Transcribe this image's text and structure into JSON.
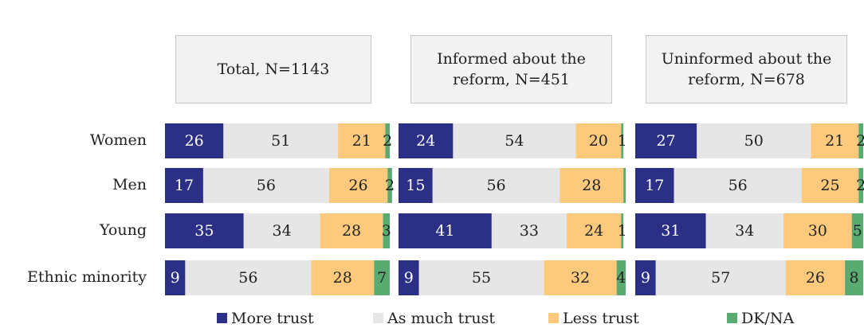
{
  "chart_data": [
    {
      "type": "stacked-bar",
      "title": "Total, N=1143",
      "categories": [
        "Women",
        "Men",
        "Young",
        "Ethnic minority"
      ],
      "xlim": [
        0,
        100
      ],
      "series": [
        {
          "name": "More trust",
          "color": "#2b2f85",
          "values": [
            26,
            17,
            35,
            9
          ]
        },
        {
          "name": "As much trust",
          "color": "#e6e6e6",
          "values": [
            51,
            56,
            34,
            56
          ]
        },
        {
          "name": "Less trust",
          "color": "#fdca7d",
          "values": [
            21,
            26,
            28,
            28
          ]
        },
        {
          "name": "DK/NA",
          "color": "#5aab72",
          "values": [
            2,
            2,
            3,
            7
          ]
        }
      ]
    },
    {
      "type": "stacked-bar",
      "title": "Informed about the reform, N=451",
      "categories": [
        "Women",
        "Men",
        "Young",
        "Ethnic minority"
      ],
      "xlim": [
        0,
        100
      ],
      "series": [
        {
          "name": "More trust",
          "color": "#2b2f85",
          "values": [
            24,
            15,
            41,
            9
          ]
        },
        {
          "name": "As much trust",
          "color": "#e6e6e6",
          "values": [
            54,
            56,
            33,
            55
          ]
        },
        {
          "name": "Less trust",
          "color": "#fdca7d",
          "values": [
            20,
            28,
            24,
            32
          ]
        },
        {
          "name": "DK/NA",
          "color": "#5aab72",
          "values": [
            1,
            1,
            1,
            4
          ],
          "value_labels": [
            "1",
            null,
            "1",
            "4"
          ]
        }
      ]
    },
    {
      "type": "stacked-bar",
      "title": "Uninformed about the reform, N=678",
      "categories": [
        "Women",
        "Men",
        "Young",
        "Ethnic minority"
      ],
      "xlim": [
        0,
        100
      ],
      "series": [
        {
          "name": "More trust",
          "color": "#2b2f85",
          "values": [
            27,
            17,
            31,
            9
          ]
        },
        {
          "name": "As much trust",
          "color": "#e6e6e6",
          "values": [
            50,
            56,
            34,
            57
          ]
        },
        {
          "name": "Less trust",
          "color": "#fdca7d",
          "values": [
            21,
            25,
            30,
            26
          ]
        },
        {
          "name": "DK/NA",
          "color": "#5aab72",
          "values": [
            2,
            2,
            5,
            8
          ]
        }
      ]
    }
  ]
}
